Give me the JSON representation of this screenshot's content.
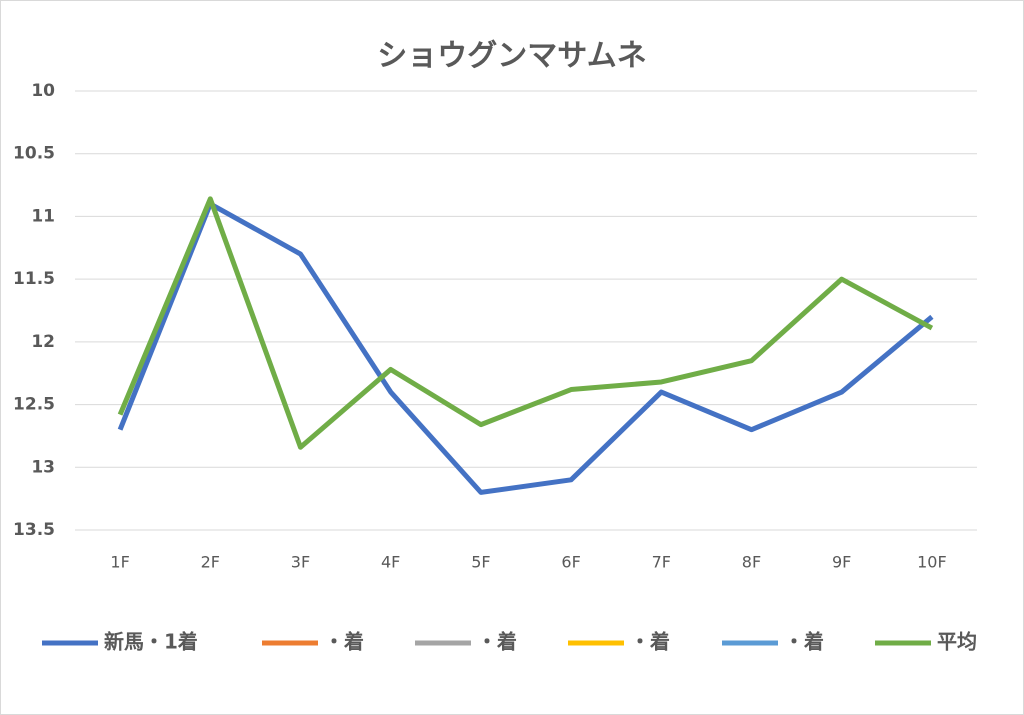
{
  "chart_data": {
    "type": "line",
    "title": "ショウグンマサムネ",
    "categories": [
      "1F",
      "2F",
      "3F",
      "4F",
      "5F",
      "6F",
      "7F",
      "8F",
      "9F",
      "10F"
    ],
    "series": [
      {
        "name": "新馬・1着",
        "color": "#4472c4",
        "values": [
          12.7,
          10.9,
          11.3,
          12.4,
          13.2,
          13.1,
          12.4,
          12.7,
          12.4,
          11.8
        ]
      },
      {
        "name": "・着",
        "color": "#ed7d31",
        "values": [
          null,
          null,
          null,
          null,
          null,
          null,
          null,
          null,
          null,
          null
        ]
      },
      {
        "name": "・着",
        "color": "#a5a5a5",
        "values": [
          null,
          null,
          null,
          null,
          null,
          null,
          null,
          null,
          null,
          null
        ]
      },
      {
        "name": "・着",
        "color": "#ffc000",
        "values": [
          null,
          null,
          null,
          null,
          null,
          null,
          null,
          null,
          null,
          null
        ]
      },
      {
        "name": "・着",
        "color": "#5b9bd5",
        "values": [
          null,
          null,
          null,
          null,
          null,
          null,
          null,
          null,
          null,
          null
        ]
      },
      {
        "name": "平均",
        "color": "#70ad47",
        "values": [
          12.58,
          10.86,
          12.84,
          12.22,
          12.66,
          12.38,
          12.32,
          12.15,
          11.5,
          11.89
        ]
      }
    ],
    "ylim": [
      10,
      13.5
    ],
    "y_reversed": true,
    "yticks": [
      10,
      10.5,
      11,
      11.5,
      12,
      12.5,
      13,
      13.5
    ],
    "grid": true,
    "legend": "bottom"
  }
}
